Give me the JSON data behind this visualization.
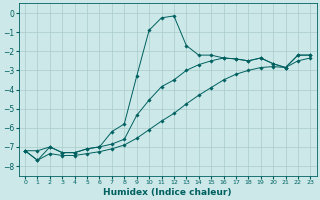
{
  "xlabel": "Humidex (Indice chaleur)",
  "background_color": "#cce8e8",
  "grid_color": "#aacccc",
  "line_color": "#006060",
  "x_values": [
    0,
    1,
    2,
    3,
    4,
    5,
    6,
    7,
    8,
    9,
    10,
    11,
    12,
    13,
    14,
    15,
    16,
    17,
    18,
    19,
    20,
    21,
    22,
    23
  ],
  "y_main": [
    -7.2,
    -7.7,
    -7.0,
    -7.3,
    -7.3,
    -7.1,
    -7.0,
    -6.2,
    -5.8,
    -3.3,
    -0.9,
    -0.25,
    -0.15,
    -1.7,
    -2.2,
    -2.2,
    -2.35,
    -2.4,
    -2.5,
    -2.35,
    -2.65,
    -2.85,
    -2.2,
    -2.2
  ],
  "y_linear_upper": [
    -7.2,
    -7.2,
    -7.0,
    -7.3,
    -7.3,
    -7.1,
    -7.0,
    -6.85,
    -6.6,
    -5.35,
    -4.55,
    -3.85,
    -3.5,
    -3.0,
    -2.7,
    -2.5,
    -2.35,
    -2.4,
    -2.5,
    -2.35,
    -2.65,
    -2.85,
    -2.2,
    -2.2
  ],
  "y_linear_lower": [
    -7.2,
    -7.7,
    -7.35,
    -7.45,
    -7.45,
    -7.35,
    -7.25,
    -7.1,
    -6.9,
    -6.55,
    -6.1,
    -5.65,
    -5.25,
    -4.75,
    -4.3,
    -3.9,
    -3.5,
    -3.2,
    -3.0,
    -2.85,
    -2.8,
    -2.85,
    -2.5,
    -2.35
  ],
  "ylim": [
    -8.5,
    0.5
  ],
  "xlim": [
    -0.5,
    23.5
  ],
  "yticks": [
    0,
    -1,
    -2,
    -3,
    -4,
    -5,
    -6,
    -7,
    -8
  ],
  "xtick_labels": [
    "0",
    "1",
    "2",
    "3",
    "4",
    "5",
    "6",
    "7",
    "8",
    "9",
    "10",
    "11",
    "12",
    "13",
    "14",
    "15",
    "16",
    "17",
    "18",
    "19",
    "20",
    "21",
    "22",
    "23"
  ]
}
